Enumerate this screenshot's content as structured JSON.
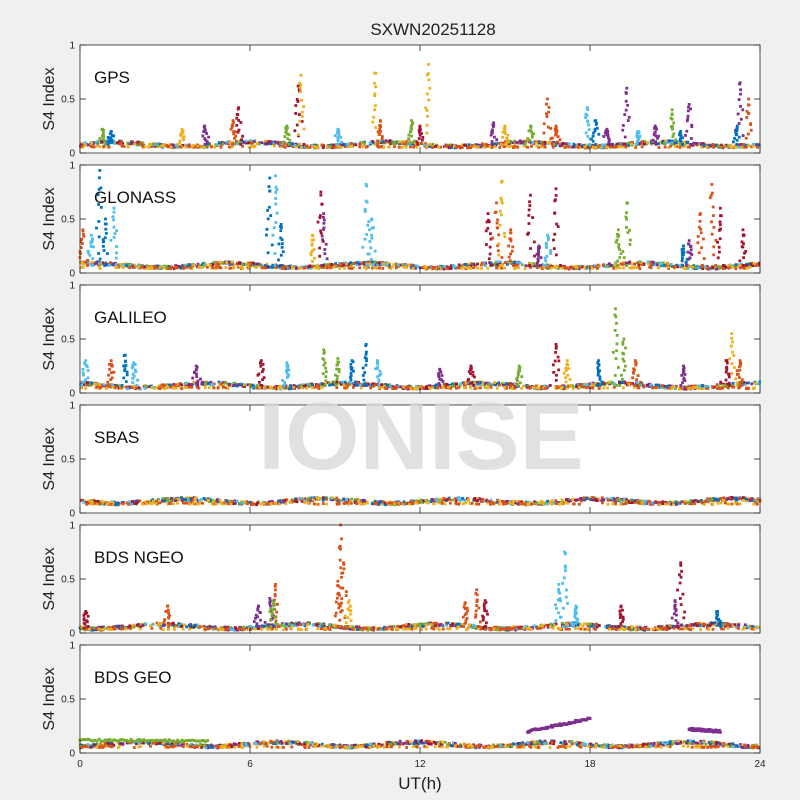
{
  "figure": {
    "title": "SXWN20251128",
    "watermark": "IONISE",
    "xlabel": "UT(h)",
    "ylabel": "S4 Index",
    "xticks": [
      "0",
      "6",
      "12",
      "18",
      "24"
    ],
    "yticks": [
      "0",
      "0.5",
      "1"
    ]
  },
  "colors": {
    "series": [
      "#0072BD",
      "#D95319",
      "#EDB120",
      "#7E2F8E",
      "#77AC30",
      "#4DBEEE",
      "#A2142F"
    ],
    "background": "#f0f0f0",
    "axes": "#ffffff"
  },
  "chart_data": [
    {
      "type": "scatter",
      "label": "GPS",
      "xlim": [
        0,
        24
      ],
      "ylim": [
        0,
        1
      ],
      "baseline": 0.08,
      "spikes": [
        {
          "x": 0.8,
          "y": 0.22,
          "c": 4
        },
        {
          "x": 1.1,
          "y": 0.2,
          "c": 0
        },
        {
          "x": 3.6,
          "y": 0.22,
          "c": 2
        },
        {
          "x": 5.6,
          "y": 0.42,
          "c": 6
        },
        {
          "x": 5.4,
          "y": 0.3,
          "c": 1
        },
        {
          "x": 7.7,
          "y": 0.62,
          "c": 6
        },
        {
          "x": 7.8,
          "y": 0.72,
          "c": 2
        },
        {
          "x": 7.3,
          "y": 0.25,
          "c": 4
        },
        {
          "x": 9.1,
          "y": 0.22,
          "c": 5
        },
        {
          "x": 10.4,
          "y": 0.74,
          "c": 2
        },
        {
          "x": 10.6,
          "y": 0.3,
          "c": 1
        },
        {
          "x": 11.7,
          "y": 0.3,
          "c": 4
        },
        {
          "x": 12.3,
          "y": 0.82,
          "c": 2
        },
        {
          "x": 12.0,
          "y": 0.25,
          "c": 6
        },
        {
          "x": 14.6,
          "y": 0.28,
          "c": 3
        },
        {
          "x": 15.0,
          "y": 0.25,
          "c": 2
        },
        {
          "x": 15.9,
          "y": 0.25,
          "c": 4
        },
        {
          "x": 16.5,
          "y": 0.5,
          "c": 1
        },
        {
          "x": 16.8,
          "y": 0.25,
          "c": 1
        },
        {
          "x": 17.9,
          "y": 0.42,
          "c": 5
        },
        {
          "x": 18.2,
          "y": 0.3,
          "c": 0
        },
        {
          "x": 18.6,
          "y": 0.22,
          "c": 3
        },
        {
          "x": 19.3,
          "y": 0.6,
          "c": 3
        },
        {
          "x": 19.7,
          "y": 0.2,
          "c": 5
        },
        {
          "x": 20.3,
          "y": 0.25,
          "c": 3
        },
        {
          "x": 20.9,
          "y": 0.4,
          "c": 4
        },
        {
          "x": 21.5,
          "y": 0.45,
          "c": 3
        },
        {
          "x": 21.2,
          "y": 0.2,
          "c": 0
        },
        {
          "x": 23.3,
          "y": 0.65,
          "c": 3
        },
        {
          "x": 23.6,
          "y": 0.5,
          "c": 1
        },
        {
          "x": 23.2,
          "y": 0.25,
          "c": 0
        },
        {
          "x": 4.4,
          "y": 0.25,
          "c": 3
        }
      ]
    },
    {
      "type": "scatter",
      "label": "GLONASS",
      "xlim": [
        0,
        24
      ],
      "ylim": [
        0,
        1
      ],
      "baseline": 0.07,
      "spikes": [
        {
          "x": 0.4,
          "y": 0.35,
          "c": 5
        },
        {
          "x": 0.7,
          "y": 0.95,
          "c": 0
        },
        {
          "x": 0.9,
          "y": 0.5,
          "c": 0
        },
        {
          "x": 1.2,
          "y": 0.6,
          "c": 5
        },
        {
          "x": 0.1,
          "y": 0.4,
          "c": 1
        },
        {
          "x": 6.7,
          "y": 0.88,
          "c": 0
        },
        {
          "x": 6.9,
          "y": 0.9,
          "c": 5
        },
        {
          "x": 7.1,
          "y": 0.45,
          "c": 0
        },
        {
          "x": 8.2,
          "y": 0.35,
          "c": 2
        },
        {
          "x": 8.5,
          "y": 0.75,
          "c": 6
        },
        {
          "x": 8.6,
          "y": 0.55,
          "c": 3
        },
        {
          "x": 10.1,
          "y": 0.82,
          "c": 5
        },
        {
          "x": 10.3,
          "y": 0.5,
          "c": 5
        },
        {
          "x": 14.4,
          "y": 0.55,
          "c": 6
        },
        {
          "x": 14.7,
          "y": 0.65,
          "c": 1
        },
        {
          "x": 14.9,
          "y": 0.85,
          "c": 2
        },
        {
          "x": 15.2,
          "y": 0.4,
          "c": 1
        },
        {
          "x": 15.9,
          "y": 0.72,
          "c": 6
        },
        {
          "x": 16.5,
          "y": 0.35,
          "c": 5
        },
        {
          "x": 16.8,
          "y": 0.78,
          "c": 6
        },
        {
          "x": 16.2,
          "y": 0.25,
          "c": 3
        },
        {
          "x": 19.0,
          "y": 0.4,
          "c": 4
        },
        {
          "x": 19.3,
          "y": 0.65,
          "c": 4
        },
        {
          "x": 21.5,
          "y": 0.3,
          "c": 3
        },
        {
          "x": 21.9,
          "y": 0.55,
          "c": 1
        },
        {
          "x": 22.3,
          "y": 0.82,
          "c": 1
        },
        {
          "x": 22.6,
          "y": 0.6,
          "c": 6
        },
        {
          "x": 23.4,
          "y": 0.4,
          "c": 6
        },
        {
          "x": 21.3,
          "y": 0.25,
          "c": 0
        }
      ]
    },
    {
      "type": "scatter",
      "label": "GALILEO",
      "xlim": [
        0,
        24
      ],
      "ylim": [
        0,
        1
      ],
      "baseline": 0.07,
      "spikes": [
        {
          "x": 0.2,
          "y": 0.3,
          "c": 5
        },
        {
          "x": 1.1,
          "y": 0.3,
          "c": 1
        },
        {
          "x": 1.6,
          "y": 0.35,
          "c": 0
        },
        {
          "x": 1.9,
          "y": 0.28,
          "c": 5
        },
        {
          "x": 4.1,
          "y": 0.25,
          "c": 3
        },
        {
          "x": 6.4,
          "y": 0.3,
          "c": 6
        },
        {
          "x": 7.3,
          "y": 0.28,
          "c": 5
        },
        {
          "x": 8.6,
          "y": 0.4,
          "c": 4
        },
        {
          "x": 9.1,
          "y": 0.32,
          "c": 4
        },
        {
          "x": 9.6,
          "y": 0.3,
          "c": 0
        },
        {
          "x": 10.1,
          "y": 0.45,
          "c": 0
        },
        {
          "x": 10.5,
          "y": 0.3,
          "c": 5
        },
        {
          "x": 12.7,
          "y": 0.22,
          "c": 3
        },
        {
          "x": 13.8,
          "y": 0.25,
          "c": 6
        },
        {
          "x": 15.5,
          "y": 0.25,
          "c": 4
        },
        {
          "x": 16.8,
          "y": 0.45,
          "c": 6
        },
        {
          "x": 17.2,
          "y": 0.3,
          "c": 2
        },
        {
          "x": 18.3,
          "y": 0.3,
          "c": 0
        },
        {
          "x": 18.9,
          "y": 0.78,
          "c": 4
        },
        {
          "x": 19.2,
          "y": 0.5,
          "c": 4
        },
        {
          "x": 19.6,
          "y": 0.3,
          "c": 1
        },
        {
          "x": 21.3,
          "y": 0.25,
          "c": 3
        },
        {
          "x": 23.0,
          "y": 0.55,
          "c": 2
        },
        {
          "x": 23.3,
          "y": 0.3,
          "c": 1
        },
        {
          "x": 22.8,
          "y": 0.3,
          "c": 6
        }
      ]
    },
    {
      "type": "scatter",
      "label": "SBAS",
      "xlim": [
        0,
        24
      ],
      "ylim": [
        0,
        1
      ],
      "baseline": 0.11,
      "spikes": []
    },
    {
      "type": "scatter",
      "label": "BDS NGEO",
      "xlim": [
        0,
        24
      ],
      "ylim": [
        0,
        1
      ],
      "baseline": 0.06,
      "spikes": [
        {
          "x": 0.2,
          "y": 0.2,
          "c": 6
        },
        {
          "x": 3.1,
          "y": 0.25,
          "c": 1
        },
        {
          "x": 6.3,
          "y": 0.25,
          "c": 3
        },
        {
          "x": 6.7,
          "y": 0.32,
          "c": 3
        },
        {
          "x": 6.9,
          "y": 0.45,
          "c": 1
        },
        {
          "x": 6.8,
          "y": 0.3,
          "c": 4
        },
        {
          "x": 9.1,
          "y": 0.48,
          "c": 1
        },
        {
          "x": 9.3,
          "y": 0.65,
          "c": 1
        },
        {
          "x": 9.2,
          "y": 1.0,
          "c": 1
        },
        {
          "x": 9.5,
          "y": 0.3,
          "c": 2
        },
        {
          "x": 13.6,
          "y": 0.28,
          "c": 1
        },
        {
          "x": 14.0,
          "y": 0.4,
          "c": 1
        },
        {
          "x": 14.3,
          "y": 0.3,
          "c": 6
        },
        {
          "x": 16.9,
          "y": 0.45,
          "c": 5
        },
        {
          "x": 17.1,
          "y": 0.75,
          "c": 5
        },
        {
          "x": 17.5,
          "y": 0.25,
          "c": 5
        },
        {
          "x": 19.1,
          "y": 0.25,
          "c": 6
        },
        {
          "x": 21.2,
          "y": 0.65,
          "c": 6
        },
        {
          "x": 21.0,
          "y": 0.3,
          "c": 3
        },
        {
          "x": 22.5,
          "y": 0.2,
          "c": 0
        }
      ]
    },
    {
      "type": "scatter",
      "label": "BDS GEO",
      "xlim": [
        0,
        24
      ],
      "ylim": [
        0,
        1
      ],
      "baseline": 0.08,
      "spikes": [],
      "segments": [
        {
          "x0": 0,
          "x1": 4.5,
          "y0": 0.12,
          "y1": 0.11,
          "c": 4
        },
        {
          "x0": 15.8,
          "x1": 18.0,
          "y0": 0.2,
          "y1": 0.32,
          "c": 3
        },
        {
          "x0": 21.5,
          "x1": 22.6,
          "y0": 0.22,
          "y1": 0.2,
          "c": 3
        }
      ]
    }
  ]
}
